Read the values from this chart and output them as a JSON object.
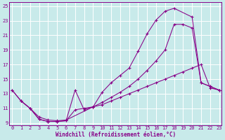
{
  "bg_color": "#c8eaea",
  "line_color": "#880088",
  "xmin": -0.3,
  "xmax": 23.3,
  "ymin": 8.7,
  "ymax": 25.5,
  "yticks": [
    9,
    11,
    13,
    15,
    17,
    19,
    21,
    23,
    25
  ],
  "xticks": [
    0,
    1,
    2,
    3,
    4,
    5,
    6,
    7,
    8,
    9,
    10,
    11,
    12,
    13,
    14,
    15,
    16,
    17,
    18,
    19,
    20,
    21,
    22,
    23
  ],
  "xlabel": "Windchill (Refroidissement éolien,°C)",
  "line1_x": [
    0,
    1,
    2,
    3,
    4,
    5,
    6,
    7,
    8,
    9,
    10,
    11,
    12,
    13,
    14,
    15,
    16,
    17,
    18,
    20,
    21,
    22,
    23
  ],
  "line1_y": [
    13.5,
    12.0,
    11.0,
    9.5,
    9.2,
    9.2,
    9.3,
    10.8,
    11.0,
    11.2,
    13.2,
    14.5,
    15.5,
    16.5,
    18.8,
    21.2,
    23.1,
    24.3,
    24.7,
    23.5,
    14.5,
    14.0,
    13.5
  ],
  "line2_x": [
    0,
    1,
    2,
    3,
    4,
    5,
    6,
    7,
    8,
    9,
    10,
    11,
    12,
    13,
    14,
    15,
    16,
    17,
    18,
    19,
    20,
    21,
    22,
    23
  ],
  "line2_y": [
    13.5,
    12.0,
    11.0,
    9.5,
    9.2,
    9.2,
    9.3,
    13.5,
    10.8,
    11.2,
    11.8,
    12.5,
    13.2,
    14.0,
    15.0,
    16.2,
    17.5,
    19.0,
    22.5,
    22.5,
    22.0,
    14.5,
    14.0,
    13.5
  ],
  "line3_x": [
    1,
    2,
    3,
    4,
    5,
    6,
    9,
    10,
    11,
    12,
    13,
    14,
    15,
    16,
    17,
    18,
    19,
    20,
    21,
    22,
    23
  ],
  "line3_y": [
    12.0,
    11.0,
    9.8,
    9.4,
    9.3,
    9.4,
    11.2,
    11.5,
    12.0,
    12.5,
    13.0,
    13.5,
    14.0,
    14.5,
    15.0,
    15.5,
    16.0,
    16.5,
    17.0,
    13.8,
    13.5
  ]
}
